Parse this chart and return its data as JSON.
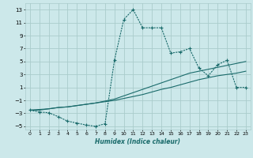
{
  "xlabel": "Humidex (Indice chaleur)",
  "xlim": [
    -0.5,
    23.5
  ],
  "ylim": [
    -5.5,
    14.0
  ],
  "yticks": [
    -5,
    -3,
    -1,
    1,
    3,
    5,
    7,
    9,
    11,
    13
  ],
  "xticks": [
    0,
    1,
    2,
    3,
    4,
    5,
    6,
    7,
    8,
    9,
    10,
    11,
    12,
    13,
    14,
    15,
    16,
    17,
    18,
    19,
    20,
    21,
    22,
    23
  ],
  "bg_color": "#cce8ea",
  "grid_color": "#aacccc",
  "line_color": "#1a6b6b",
  "line1_x": [
    0,
    1,
    2,
    3,
    4,
    5,
    6,
    7,
    8,
    9,
    10,
    11,
    12,
    13,
    14,
    15,
    16,
    17,
    18,
    19,
    20,
    21,
    22,
    23
  ],
  "line1_y": [
    -2.5,
    -2.8,
    -2.9,
    -3.5,
    -4.2,
    -4.5,
    -4.8,
    -5.0,
    -4.6,
    5.2,
    11.5,
    13.0,
    10.2,
    10.2,
    10.2,
    6.3,
    6.5,
    7.0,
    4.0,
    2.8,
    4.5,
    5.2,
    1.0,
    1.0
  ],
  "line2_x": [
    0,
    1,
    2,
    3,
    4,
    5,
    6,
    7,
    8,
    9,
    10,
    11,
    12,
    13,
    14,
    15,
    16,
    17,
    18,
    19,
    20,
    21,
    22,
    23
  ],
  "line2_y": [
    -2.5,
    -2.5,
    -2.3,
    -2.1,
    -2.0,
    -1.8,
    -1.6,
    -1.4,
    -1.2,
    -1.0,
    -0.7,
    -0.4,
    -0.1,
    0.3,
    0.7,
    1.0,
    1.4,
    1.8,
    2.2,
    2.5,
    2.8,
    3.0,
    3.2,
    3.5
  ],
  "line3_x": [
    0,
    1,
    2,
    3,
    4,
    5,
    6,
    7,
    8,
    9,
    10,
    11,
    12,
    13,
    14,
    15,
    16,
    17,
    18,
    19,
    20,
    21,
    22,
    23
  ],
  "line3_y": [
    -2.5,
    -2.4,
    -2.3,
    -2.1,
    -2.0,
    -1.8,
    -1.6,
    -1.4,
    -1.1,
    -0.8,
    -0.3,
    0.2,
    0.7,
    1.2,
    1.7,
    2.2,
    2.7,
    3.2,
    3.5,
    3.8,
    4.1,
    4.4,
    4.7,
    5.0
  ]
}
